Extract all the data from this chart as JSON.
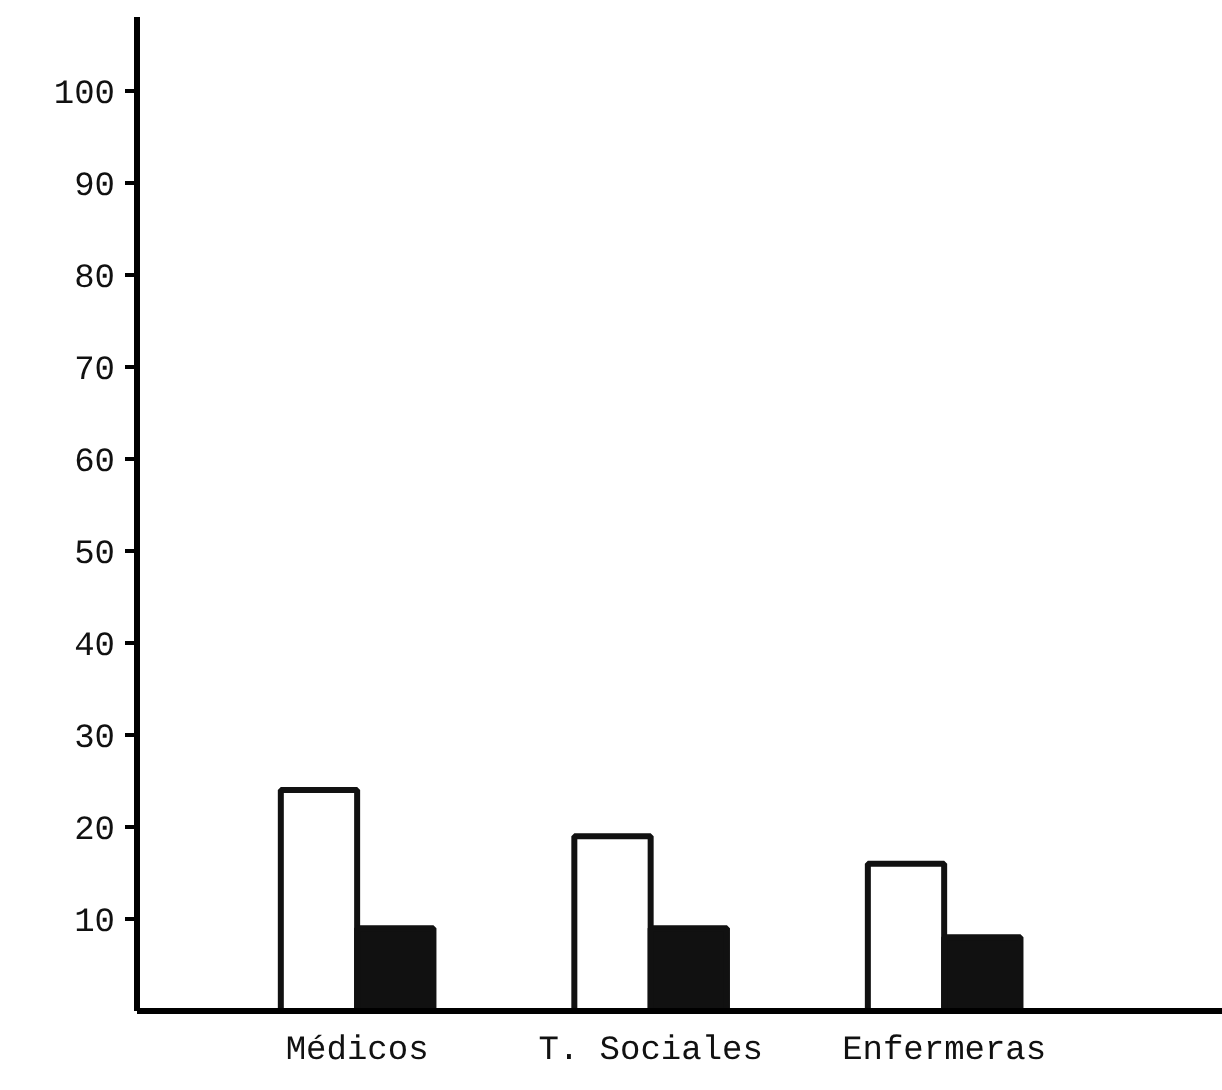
{
  "chart_data": {
    "type": "bar",
    "categories": [
      "Médicos",
      "T. Sociales",
      "Enfermeras"
    ],
    "series": [
      {
        "color": "#ffffff",
        "values": [
          24,
          19,
          16
        ]
      },
      {
        "color": "#111111",
        "values": [
          9,
          9,
          8
        ]
      }
    ],
    "ylim": [
      0,
      108
    ],
    "yticks": [
      10,
      20,
      30,
      40,
      50,
      60,
      70,
      80,
      90,
      100
    ],
    "grid": false
  }
}
